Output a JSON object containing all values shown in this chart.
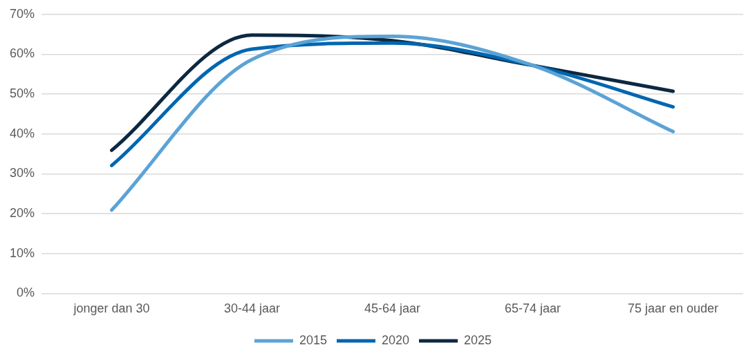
{
  "chart_data": {
    "type": "line",
    "categories": [
      "jonger dan 30",
      "30-44 jaar",
      "45-64 jaar",
      "65-74 jaar",
      "75 jaar en ouder"
    ],
    "series": [
      {
        "name": "2015",
        "color": "#5ba3d6",
        "values": [
          20.9,
          58.7,
          64.5,
          57.2,
          40.6
        ]
      },
      {
        "name": "2020",
        "color": "#0066b0",
        "values": [
          32.1,
          61.3,
          62.8,
          57.2,
          46.8
        ]
      },
      {
        "name": "2025",
        "color": "#0d2841",
        "values": [
          35.9,
          64.8,
          63.4,
          57.2,
          50.7
        ]
      }
    ],
    "ylim": [
      0,
      70
    ],
    "yticks": [
      {
        "value": 0,
        "label": "0%"
      },
      {
        "value": 10,
        "label": "10%"
      },
      {
        "value": 20,
        "label": "20%"
      },
      {
        "value": 30,
        "label": "30%"
      },
      {
        "value": 40,
        "label": "40%"
      },
      {
        "value": 50,
        "label": "50%"
      },
      {
        "value": 60,
        "label": "60%"
      },
      {
        "value": 70,
        "label": "70%"
      }
    ],
    "grid": "y",
    "legend": "bottom",
    "marker": "none",
    "line_style": "solid"
  }
}
